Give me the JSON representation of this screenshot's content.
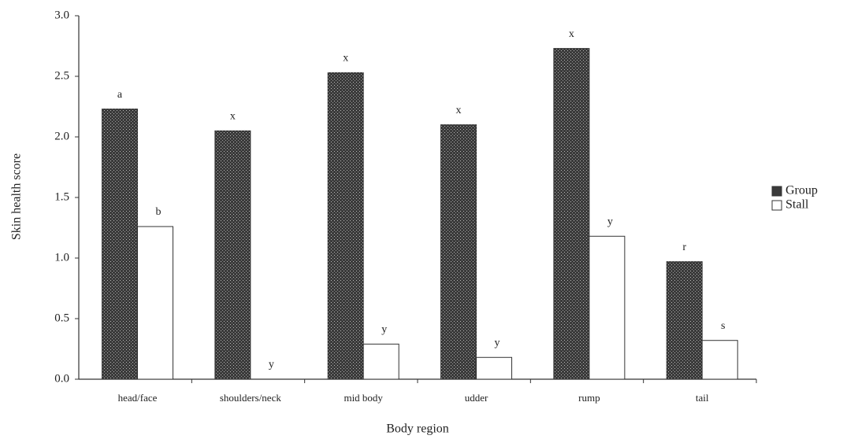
{
  "chart_data": {
    "type": "bar",
    "xlabel": "Body region",
    "ylabel": "Skin health score",
    "categories": [
      "head/face",
      "shoulders/neck",
      "mid body",
      "udder",
      "rump",
      "tail"
    ],
    "series": [
      {
        "name": "Group",
        "color": "#3a3a3a",
        "values": [
          2.23,
          2.05,
          2.53,
          2.1,
          2.73,
          0.97
        ],
        "annotations": [
          "a",
          "x",
          "x",
          "x",
          "x",
          "r"
        ]
      },
      {
        "name": "Stall",
        "color": "#ffffff",
        "values": [
          1.26,
          0,
          0.29,
          0.18,
          1.18,
          0.32
        ],
        "annotations": [
          "b",
          "y",
          "y",
          "y",
          "y",
          "s"
        ]
      }
    ],
    "ylim": [
      0,
      3
    ],
    "yticks": [
      {
        "value": 0,
        "label": "0.0"
      },
      0.5,
      {
        "value": 1,
        "label": "1.0"
      },
      1.5,
      {
        "value": 2,
        "label": "2.0"
      },
      2.5,
      {
        "value": 3,
        "label": "3.0"
      }
    ],
    "legend": "right"
  }
}
